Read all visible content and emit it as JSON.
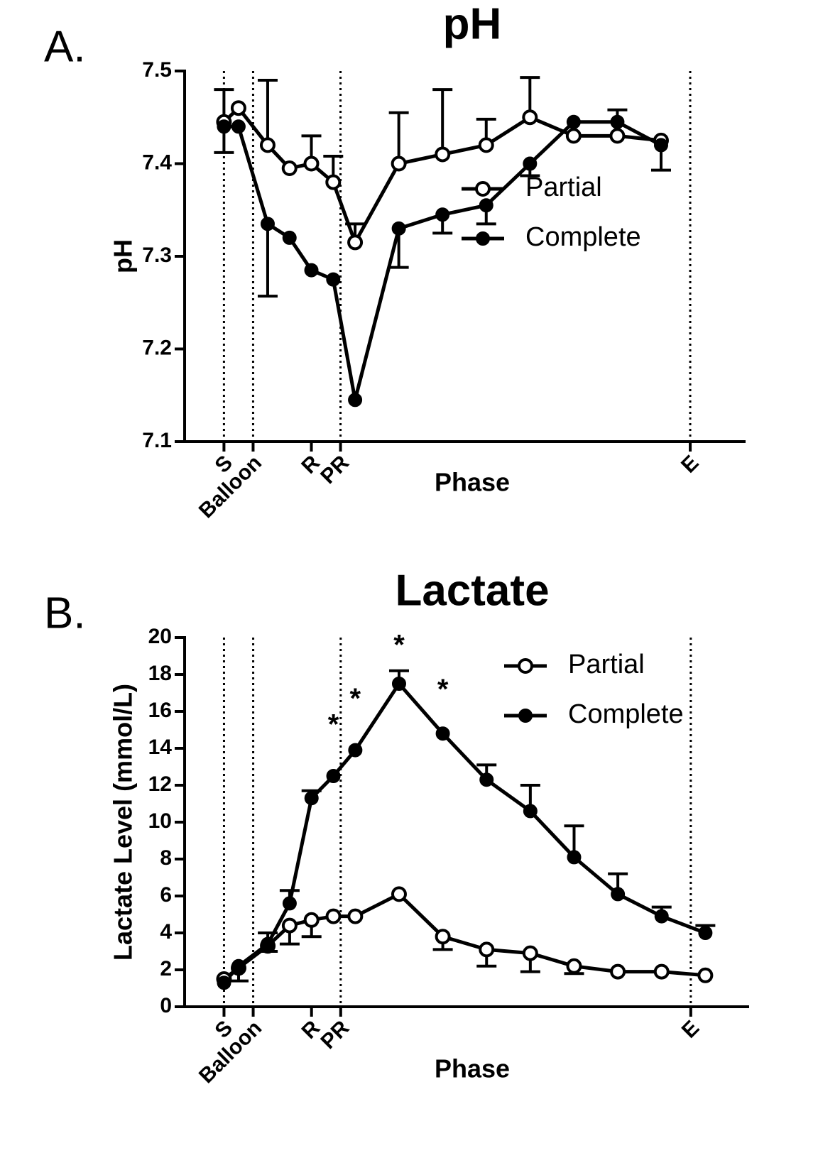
{
  "chart_data": [
    {
      "type": "line",
      "panel_label": "A.",
      "title": "pH",
      "x_label": "Phase",
      "y_label": "pH",
      "x": [
        0,
        10,
        30,
        45,
        60,
        75,
        90,
        120,
        150,
        180,
        210,
        240,
        270,
        300
      ],
      "xlim": [
        -27,
        358
      ],
      "xticks": [
        {
          "value": 0,
          "label": "S"
        },
        {
          "value": 20,
          "label": "Balloon"
        },
        {
          "value": 60,
          "label": "R"
        },
        {
          "value": 80,
          "label": "PR"
        },
        {
          "value": 320,
          "label": "E"
        }
      ],
      "reference_lines": [
        0,
        20,
        80,
        320
      ],
      "ylim": [
        7.1,
        7.5
      ],
      "yticks": [
        7.1,
        7.2,
        7.3,
        7.4,
        7.5
      ],
      "legend": "center right",
      "series": [
        {
          "name": "Partial",
          "color": "#000000",
          "marker": "open",
          "error_direction": "up",
          "values": [
            7.445,
            7.46,
            7.42,
            7.395,
            7.4,
            7.38,
            7.315,
            7.4,
            7.41,
            7.42,
            7.45,
            7.43,
            7.43,
            7.425
          ],
          "errors": [
            0.035,
            0,
            0.07,
            0,
            0.03,
            0.028,
            0.02,
            0.055,
            0.07,
            0.028,
            0.043,
            0,
            0.028,
            0
          ]
        },
        {
          "name": "Complete",
          "color": "#000000",
          "marker": "filled",
          "error_direction": "down",
          "values": [
            7.44,
            7.44,
            7.335,
            7.32,
            7.285,
            7.275,
            7.145,
            7.33,
            7.345,
            7.355,
            7.4,
            7.445,
            7.445,
            7.42
          ],
          "errors": [
            0.028,
            0,
            0.078,
            0,
            0,
            0,
            0,
            0.042,
            0.02,
            0.02,
            0.013,
            0,
            0,
            0.027
          ]
        }
      ]
    },
    {
      "type": "line",
      "panel_label": "B.",
      "title": "Lactate",
      "x_label": "Phase",
      "y_label": "Lactate Level  (mmol/L)",
      "x": [
        0,
        10,
        30,
        45,
        60,
        75,
        90,
        120,
        150,
        180,
        210,
        240,
        270,
        300,
        330
      ],
      "xlim": [
        -27,
        360
      ],
      "xticks": [
        {
          "value": 0,
          "label": "S"
        },
        {
          "value": 20,
          "label": "Balloon"
        },
        {
          "value": 60,
          "label": "R"
        },
        {
          "value": 80,
          "label": "PR"
        },
        {
          "value": 320,
          "label": "E"
        }
      ],
      "reference_lines": [
        0,
        20,
        80,
        320
      ],
      "ylim": [
        0,
        20
      ],
      "yticks": [
        0,
        2,
        4,
        6,
        8,
        10,
        12,
        14,
        16,
        18,
        20
      ],
      "legend": "upper right",
      "annotations": [
        {
          "text": "*",
          "x": 75,
          "y": 15.2
        },
        {
          "text": "*",
          "x": 90,
          "y": 16.6
        },
        {
          "text": "*",
          "x": 120,
          "y": 19.5
        },
        {
          "text": "*",
          "x": 150,
          "y": 17.1
        }
      ],
      "series": [
        {
          "name": "Partial",
          "color": "#000000",
          "marker": "open",
          "error_direction": "down",
          "values": [
            1.5,
            2.1,
            3.3,
            4.4,
            4.7,
            4.9,
            4.9,
            6.1,
            3.8,
            3.1,
            2.9,
            2.2,
            1.9,
            1.9,
            1.7
          ],
          "errors": [
            0,
            0.7,
            0.3,
            1.0,
            0.9,
            0,
            0,
            0,
            0.7,
            0.9,
            1.0,
            0.4,
            0,
            0,
            0
          ]
        },
        {
          "name": "Complete",
          "color": "#000000",
          "marker": "filled",
          "error_direction": "up",
          "values": [
            1.3,
            2.2,
            3.4,
            5.6,
            11.3,
            12.5,
            13.9,
            17.5,
            14.8,
            12.3,
            10.6,
            8.1,
            6.1,
            4.9,
            4.0
          ],
          "errors": [
            0,
            0,
            0.6,
            0.7,
            0.4,
            0,
            0,
            0.7,
            0,
            0.8,
            1.4,
            1.7,
            1.1,
            0.5,
            0.4
          ]
        }
      ]
    }
  ]
}
